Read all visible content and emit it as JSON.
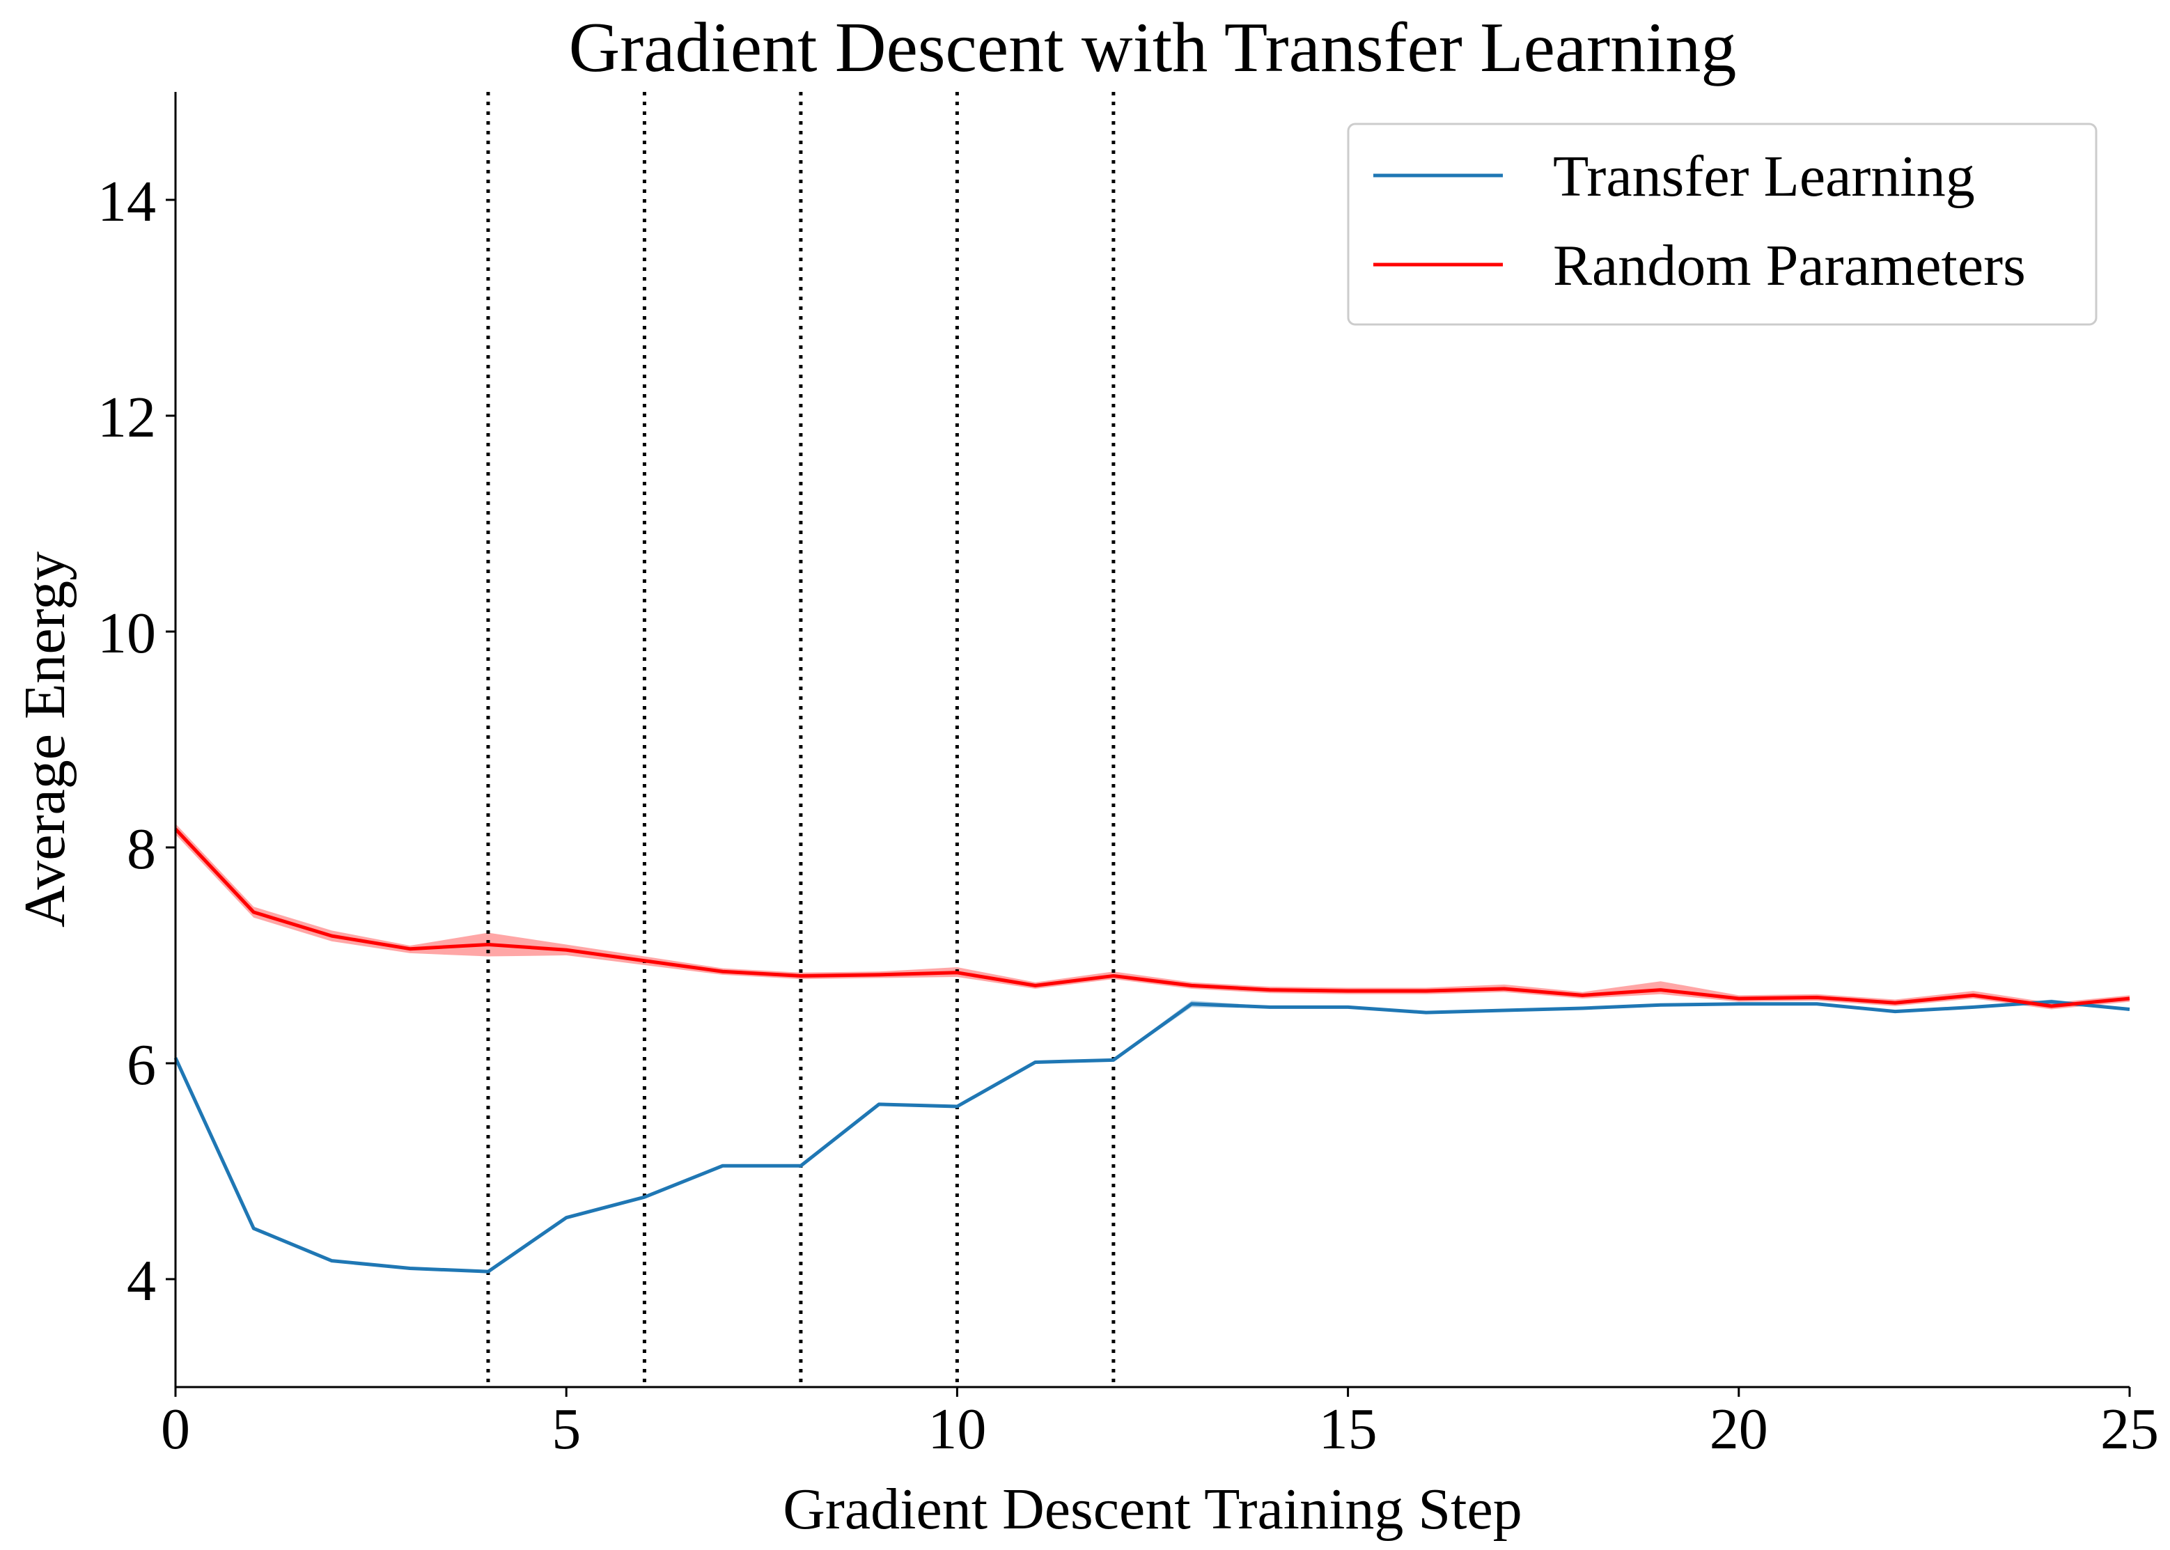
{
  "chart_data": {
    "type": "line",
    "title": "Gradient Descent with Transfer Learning",
    "xlabel": "Gradient Descent Training Step",
    "ylabel": "Average Energy",
    "xlim": [
      0,
      25
    ],
    "ylim": [
      3,
      15
    ],
    "xticks": [
      0,
      5,
      10,
      15,
      20,
      25
    ],
    "yticks": [
      4,
      6,
      8,
      10,
      12,
      14
    ],
    "grid": false,
    "legend_position": "top-right",
    "vlines": [
      4,
      6,
      8,
      10,
      12
    ],
    "vline_color": "#000000",
    "x": [
      0,
      1,
      2,
      3,
      4,
      5,
      6,
      7,
      8,
      9,
      10,
      11,
      12,
      13,
      14,
      15,
      16,
      17,
      18,
      19,
      20,
      21,
      22,
      23,
      24,
      25
    ],
    "series": [
      {
        "name": "Transfer Learning",
        "color": "#1f77b4",
        "values": [
          6.05,
          4.47,
          4.17,
          4.1,
          4.07,
          4.57,
          4.76,
          5.05,
          5.05,
          5.62,
          5.6,
          6.01,
          6.03,
          6.55,
          6.52,
          6.52,
          6.47,
          6.49,
          6.51,
          6.54,
          6.55,
          6.55,
          6.48,
          6.52,
          6.57,
          6.5
        ],
        "band_lower": [
          6.05,
          4.46,
          4.16,
          4.09,
          4.06,
          4.56,
          4.75,
          5.04,
          5.04,
          5.61,
          5.59,
          6.0,
          6.02,
          6.52,
          6.51,
          6.51,
          6.46,
          6.48,
          6.5,
          6.53,
          6.54,
          6.54,
          6.47,
          6.51,
          6.55,
          6.49
        ],
        "band_upper": [
          6.06,
          4.48,
          4.18,
          4.11,
          4.08,
          4.58,
          4.77,
          5.06,
          5.06,
          5.63,
          5.61,
          6.02,
          6.04,
          6.58,
          6.53,
          6.53,
          6.48,
          6.5,
          6.52,
          6.55,
          6.56,
          6.56,
          6.49,
          6.53,
          6.59,
          6.51
        ]
      },
      {
        "name": "Random Parameters",
        "color": "#ff0000",
        "values": [
          8.17,
          7.4,
          7.18,
          7.06,
          7.1,
          7.05,
          6.95,
          6.85,
          6.81,
          6.82,
          6.84,
          6.72,
          6.81,
          6.72,
          6.68,
          6.67,
          6.67,
          6.69,
          6.63,
          6.68,
          6.6,
          6.61,
          6.56,
          6.63,
          6.53,
          6.6
        ],
        "band_lower": [
          8.12,
          7.35,
          7.13,
          7.02,
          6.99,
          7.0,
          6.91,
          6.82,
          6.78,
          6.79,
          6.8,
          6.69,
          6.78,
          6.69,
          6.65,
          6.64,
          6.64,
          6.66,
          6.6,
          6.64,
          6.57,
          6.58,
          6.53,
          6.6,
          6.5,
          6.57
        ],
        "band_upper": [
          8.22,
          7.45,
          7.23,
          7.09,
          7.21,
          7.1,
          6.99,
          6.88,
          6.84,
          6.85,
          6.89,
          6.75,
          6.85,
          6.75,
          6.71,
          6.7,
          6.7,
          6.73,
          6.66,
          6.76,
          6.63,
          6.64,
          6.59,
          6.67,
          6.56,
          6.63
        ]
      }
    ]
  }
}
